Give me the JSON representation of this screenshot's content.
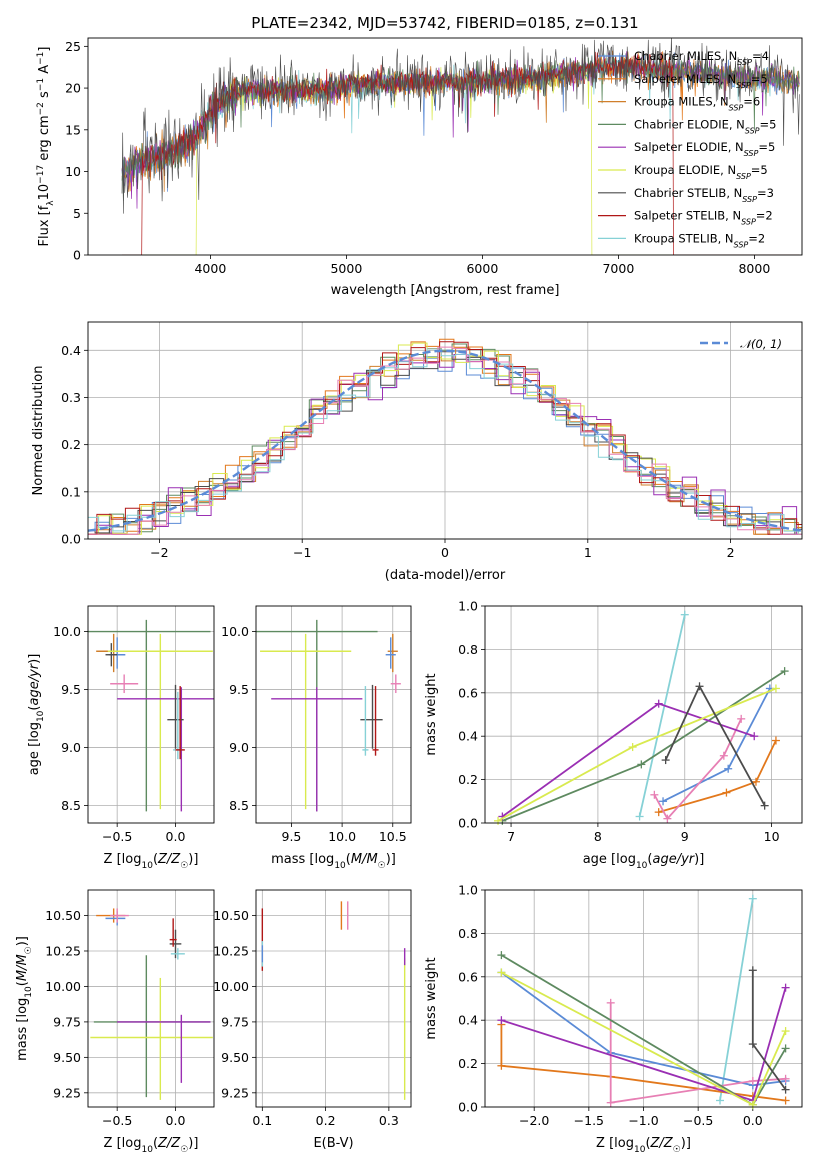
{
  "title": "PLATE=2342, MJD=53742, FIBERID=0185, z=0.131",
  "colors": {
    "Chabrier MILES": "#5b8bd6",
    "Salpeter MILES": "#e2781c",
    "Kroupa MILES": "#d07f2b",
    "Chabrier ELODIE": "#5e8a60",
    "Salpeter ELODIE": "#9a2fb3",
    "Kroupa ELODIE": "#d9ea4f",
    "Chabrier STELIB": "#4c4c4c",
    "Salpeter STELIB": "#b01717",
    "Kroupa STELIB": "#86d1d6",
    "pink": "#e77fb4",
    "normal": "#5b8bd6"
  },
  "chart_data": [
    {
      "type": "line",
      "panel": "spectrum",
      "xlabel": "wavelength [Angstrom, rest frame]",
      "ylabel": "Flux [f_λ 10^-17 erg cm^-2 s^-1 A^-1]",
      "xlim": [
        3100,
        8350
      ],
      "ylim": [
        0,
        26
      ],
      "xticks": [
        4000,
        5000,
        6000,
        7000,
        8000
      ],
      "yticks": [
        0,
        5,
        10,
        15,
        20,
        25
      ],
      "legend_position": "top-right",
      "legend": [
        {
          "label": "Chabrier MILES",
          "nssp": "4"
        },
        {
          "label": "Salpeter MILES",
          "nssp": "5"
        },
        {
          "label": "Kroupa MILES",
          "nssp": "6"
        },
        {
          "label": "Chabrier ELODIE",
          "nssp": "5"
        },
        {
          "label": "Salpeter ELODIE",
          "nssp": "5"
        },
        {
          "label": "Kroupa ELODIE",
          "nssp": "5"
        },
        {
          "label": "Chabrier STELIB",
          "nssp": "3"
        },
        {
          "label": "Salpeter STELIB",
          "nssp": "2"
        },
        {
          "label": "Kroupa STELIB",
          "nssp": "2"
        }
      ],
      "continuum": {
        "x": [
          3350,
          3500,
          3700,
          3900,
          4000,
          4200,
          4500,
          4800,
          5000,
          5300,
          5600,
          6000,
          6300,
          6600,
          7000,
          7300,
          7600,
          8000,
          8350
        ],
        "y": [
          10,
          11,
          12,
          14,
          17,
          19.5,
          19.5,
          19.5,
          20,
          20.5,
          20.5,
          20.5,
          21,
          21.5,
          22.5,
          22,
          21.5,
          21,
          20.5
        ]
      },
      "cutoffs": [
        {
          "series": "Salpeter STELIB",
          "x": 3500
        },
        {
          "series": "Kroupa ELODIE",
          "x": 3900
        },
        {
          "series": "Kroupa ELODIE",
          "x": 6800
        },
        {
          "series": "Salpeter STELIB",
          "x": 7400
        }
      ]
    },
    {
      "type": "histogram",
      "panel": "residuals",
      "xlabel": "(data-model)/error",
      "ylabel": "Normed distribution",
      "xlim": [
        -2.5,
        2.5
      ],
      "ylim": [
        0,
        0.46
      ],
      "xticks": [
        -2,
        -1,
        0,
        1,
        2
      ],
      "yticks": [
        0.0,
        0.1,
        0.2,
        0.3,
        0.4
      ],
      "grid": true,
      "legend_position": "top-right",
      "legend": "N(0,1)",
      "bin_width": 0.1,
      "reference_curve": {
        "type": "normal",
        "mean": 0,
        "sigma": 1
      }
    },
    {
      "type": "scatter-errorbar",
      "panel": "age-vs-Z",
      "xlabel": "Z [log10(Z/Z☉)]",
      "ylabel": "age [log10(age/yr)]",
      "xlim": [
        -0.75,
        0.33
      ],
      "ylim": [
        8.35,
        10.22
      ],
      "xticks": [
        -0.5,
        0.0
      ],
      "yticks": [
        8.5,
        9.0,
        9.5,
        10.0
      ],
      "grid": true,
      "points": [
        {
          "series": "Kroupa MILES",
          "x": -0.53,
          "y": 9.83,
          "ex": [
            0.15,
            0.07
          ],
          "ey": [
            0.18,
            0.15
          ]
        },
        {
          "series": "Chabrier MILES",
          "x": -0.5,
          "y": 9.8,
          "ex": [
            0.07,
            0.07
          ],
          "ey": [
            0.12,
            0.15
          ]
        },
        {
          "series": "Chabrier STELIB",
          "x": -0.55,
          "y": 9.8,
          "ex": [
            0.05,
            0.05
          ],
          "ey": [
            0.1,
            0.1
          ]
        },
        {
          "series": "pink",
          "x": -0.44,
          "y": 9.55,
          "ex": [
            0.12,
            0.12
          ],
          "ey": [
            0.08,
            0.08
          ]
        },
        {
          "series": "Chabrier ELODIE",
          "x": -0.25,
          "y": 10.0,
          "ex": [
            0.55,
            0.55
          ],
          "ey": [
            1.55,
            0.1
          ]
        },
        {
          "series": "Kroupa ELODIE",
          "x": -0.13,
          "y": 9.83,
          "ex": [
            0.45,
            0.45
          ],
          "ey": [
            1.36,
            0.15
          ]
        },
        {
          "series": "Salpeter ELODIE",
          "x": 0.05,
          "y": 9.42,
          "ex": [
            0.55,
            0.3
          ],
          "ey": [
            0.97,
            0.1
          ]
        },
        {
          "series": "Chabrier STELIB",
          "x": 0.0,
          "y": 9.24,
          "ex": [
            0.07,
            0.07
          ],
          "ey": [
            0.25,
            0.3
          ]
        },
        {
          "series": "Kroupa STELIB",
          "x": 0.02,
          "y": 8.98,
          "ex": [
            0.04,
            0.04
          ],
          "ey": [
            0.08,
            0.5
          ]
        },
        {
          "series": "Salpeter STELIB",
          "x": 0.04,
          "y": 8.98,
          "ex": [
            0.04,
            0.04
          ],
          "ey": [
            0.08,
            0.55
          ]
        }
      ]
    },
    {
      "type": "scatter-errorbar",
      "panel": "age-vs-mass",
      "xlabel": "mass [log10(M/M☉)]",
      "ylabel": "",
      "xlim": [
        9.15,
        10.68
      ],
      "ylim": [
        8.35,
        10.22
      ],
      "xticks": [
        9.5,
        10.0,
        10.5
      ],
      "yticks": [
        8.5,
        9.0,
        9.5,
        10.0
      ],
      "grid": true,
      "points": [
        {
          "series": "Chabrier ELODIE",
          "x": 9.75,
          "y": 10.0,
          "ex": [
            0.6,
            0.6
          ],
          "ey": [
            1.55,
            0.1
          ]
        },
        {
          "series": "Kroupa ELODIE",
          "x": 9.64,
          "y": 9.83,
          "ex": [
            0.45,
            0.45
          ],
          "ey": [
            1.36,
            0.15
          ]
        },
        {
          "series": "Salpeter ELODIE",
          "x": 9.75,
          "y": 9.42,
          "ex": [
            0.45,
            0.45
          ],
          "ey": [
            0.97,
            0.1
          ]
        },
        {
          "series": "Chabrier STELIB",
          "x": 10.3,
          "y": 9.24,
          "ex": [
            0.12,
            0.1
          ],
          "ey": [
            0.25,
            0.3
          ]
        },
        {
          "series": "Kroupa STELIB",
          "x": 10.23,
          "y": 8.98,
          "ex": [
            0.03,
            0.03
          ],
          "ey": [
            0.05,
            0.55
          ]
        },
        {
          "series": "Salpeter STELIB",
          "x": 10.33,
          "y": 8.98,
          "ex": [
            0.03,
            0.03
          ],
          "ey": [
            0.05,
            0.55
          ]
        },
        {
          "series": "Kroupa MILES",
          "x": 10.5,
          "y": 9.83,
          "ex": [
            0.05,
            0.05
          ],
          "ey": [
            0.18,
            0.15
          ]
        },
        {
          "series": "Chabrier MILES",
          "x": 10.48,
          "y": 9.8,
          "ex": [
            0.05,
            0.05
          ],
          "ey": [
            0.12,
            0.15
          ]
        },
        {
          "series": "pink",
          "x": 10.53,
          "y": 9.55,
          "ex": [
            0.05,
            0.05
          ],
          "ey": [
            0.08,
            0.08
          ]
        }
      ]
    },
    {
      "type": "line",
      "panel": "mass-weight-vs-age",
      "xlabel": "age [log10(age/yr)]",
      "ylabel": "mass weight",
      "xlim": [
        6.7,
        10.35
      ],
      "ylim": [
        0,
        1
      ],
      "xticks": [
        7,
        8,
        9,
        10
      ],
      "yticks": [
        0.0,
        0.2,
        0.4,
        0.6,
        0.8,
        1.0
      ],
      "grid": true,
      "series": [
        {
          "name": "Kroupa STELIB",
          "x": [
            8.48,
            9.0
          ],
          "y": [
            0.03,
            0.96
          ]
        },
        {
          "name": "Chabrier MILES",
          "x": [
            8.75,
            9.5,
            9.98
          ],
          "y": [
            0.1,
            0.25,
            0.62
          ]
        },
        {
          "name": "Salpeter MILES",
          "x": [
            8.7,
            9.48,
            9.82,
            10.05
          ],
          "y": [
            0.05,
            0.14,
            0.19,
            0.38
          ]
        },
        {
          "name": "pink",
          "x": [
            8.65,
            8.8,
            9.45,
            9.65
          ],
          "y": [
            0.13,
            0.02,
            0.31,
            0.48
          ]
        },
        {
          "name": "Chabrier ELODIE",
          "x": [
            6.9,
            8.5,
            10.15
          ],
          "y": [
            0.01,
            0.27,
            0.7
          ]
        },
        {
          "name": "Salpeter ELODIE",
          "x": [
            6.9,
            8.7,
            9.8
          ],
          "y": [
            0.03,
            0.55,
            0.4
          ]
        },
        {
          "name": "Kroupa ELODIE",
          "x": [
            6.85,
            8.4,
            10.05
          ],
          "y": [
            0.01,
            0.35,
            0.62
          ]
        },
        {
          "name": "Chabrier STELIB",
          "x": [
            8.78,
            9.17,
            9.92
          ],
          "y": [
            0.29,
            0.63,
            0.08
          ]
        }
      ]
    },
    {
      "type": "scatter-errorbar",
      "panel": "mass-vs-Z",
      "xlabel": "Z [log10(Z/Z☉)]",
      "ylabel": "mass [log10(M/M☉)]",
      "xlim": [
        -0.75,
        0.33
      ],
      "ylim": [
        9.15,
        10.68
      ],
      "xticks": [
        -0.5,
        0.0
      ],
      "yticks": [
        9.25,
        9.5,
        9.75,
        10.0,
        10.25,
        10.5
      ],
      "grid": true,
      "points": [
        {
          "series": "Salpeter MILES",
          "x": -0.53,
          "y": 10.5,
          "ex": [
            0.15,
            0.1
          ],
          "ey": [
            0.05,
            0.05
          ]
        },
        {
          "series": "Chabrier MILES",
          "x": -0.5,
          "y": 10.48,
          "ex": [
            0.1,
            0.07
          ],
          "ey": [
            0.05,
            0.05
          ]
        },
        {
          "series": "pink",
          "x": -0.5,
          "y": 10.5,
          "ex": [
            0.06,
            0.1
          ],
          "ey": [
            0.05,
            0.05
          ]
        },
        {
          "series": "Chabrier ELODIE",
          "x": -0.25,
          "y": 9.75,
          "ex": [
            0.45,
            0.55
          ],
          "ey": [
            0.53,
            0.47
          ]
        },
        {
          "series": "Kroupa ELODIE",
          "x": -0.13,
          "y": 9.64,
          "ex": [
            0.6,
            0.45
          ],
          "ey": [
            0.44,
            0.42
          ]
        },
        {
          "series": "Salpeter ELODIE",
          "x": 0.05,
          "y": 9.75,
          "ex": [
            0.55,
            0.25
          ],
          "ey": [
            0.43,
            0.05
          ]
        },
        {
          "series": "Chabrier STELIB",
          "x": 0.0,
          "y": 10.3,
          "ex": [
            0.05,
            0.05
          ],
          "ey": [
            0.1,
            0.1
          ]
        },
        {
          "series": "Salpeter STELIB",
          "x": -0.02,
          "y": 10.33,
          "ex": [
            0.03,
            0.03
          ],
          "ey": [
            0.05,
            0.15
          ]
        },
        {
          "series": "Kroupa STELIB",
          "x": 0.02,
          "y": 10.23,
          "ex": [
            0.06,
            0.06
          ],
          "ey": [
            0.04,
            0.04
          ]
        }
      ]
    },
    {
      "type": "scatter-errorbar",
      "panel": "mass-vs-ebv",
      "xlabel": "E(B-V)",
      "ylabel": "",
      "xlim": [
        0.09,
        0.335
      ],
      "ylim": [
        9.15,
        10.68
      ],
      "xticks": [
        0.1,
        0.2,
        0.3
      ],
      "yticks": [
        9.25,
        9.5,
        9.75,
        10.0,
        10.25,
        10.5
      ],
      "grid": true,
      "points": [
        {
          "series": "Salpeter STELIB",
          "x": 0.1,
          "y": 10.33,
          "ex": [
            0,
            0
          ],
          "ey": [
            0.22,
            0.22
          ]
        },
        {
          "series": "Kroupa STELIB",
          "x": 0.1,
          "y": 10.23,
          "ex": [
            0,
            0
          ],
          "ey": [
            0.09,
            0.09
          ]
        },
        {
          "series": "Chabrier MILES",
          "x": 0.1,
          "y": 10.23,
          "ex": [
            0,
            0
          ],
          "ey": [
            0.06,
            0.06
          ]
        },
        {
          "series": "Salpeter MILES",
          "x": 0.225,
          "y": 10.5,
          "ex": [
            0,
            0
          ],
          "ey": [
            0.1,
            0.1
          ]
        },
        {
          "series": "pink",
          "x": 0.235,
          "y": 10.5,
          "ex": [
            0,
            0
          ],
          "ey": [
            0.1,
            0.1
          ]
        },
        {
          "series": "Kroupa ELODIE",
          "x": 0.325,
          "y": 9.75,
          "ex": [
            0,
            0
          ],
          "ey": [
            0.55,
            0.45
          ]
        },
        {
          "series": "Salpeter ELODIE",
          "x": 0.325,
          "y": 10.2,
          "ex": [
            0,
            0
          ],
          "ey": [
            0.05,
            0.07
          ]
        }
      ]
    },
    {
      "type": "line",
      "panel": "mass-weight-vs-Z",
      "xlabel": "Z [log10(Z/Z☉)]",
      "ylabel": "mass weight",
      "xlim": [
        -2.45,
        0.45
      ],
      "ylim": [
        0,
        1
      ],
      "xticks": [
        -2.0,
        -1.5,
        -1.0,
        -0.5,
        0.0
      ],
      "yticks": [
        0.0,
        0.2,
        0.4,
        0.6,
        0.8,
        1.0
      ],
      "grid": true,
      "series": [
        {
          "name": "Kroupa STELIB",
          "x": [
            -0.3,
            0.0
          ],
          "y": [
            0.03,
            0.96
          ]
        },
        {
          "name": "Chabrier MILES",
          "x": [
            -2.3,
            -1.3,
            0.0,
            0.3
          ],
          "y": [
            0.62,
            0.25,
            0.1,
            0.12
          ]
        },
        {
          "name": "Salpeter MILES",
          "x": [
            -2.3,
            -2.3,
            -1.3,
            0.0,
            0.3
          ],
          "y": [
            0.38,
            0.19,
            0.14,
            0.05,
            0.03
          ]
        },
        {
          "name": "pink",
          "x": [
            -1.3,
            -1.3,
            0.0,
            0.3
          ],
          "y": [
            0.48,
            0.02,
            0.12,
            0.13
          ]
        },
        {
          "name": "Chabrier ELODIE",
          "x": [
            -2.3,
            0.0,
            0.3
          ],
          "y": [
            0.7,
            0.01,
            0.27
          ]
        },
        {
          "name": "Salpeter ELODIE",
          "x": [
            -2.3,
            0.0,
            0.3
          ],
          "y": [
            0.4,
            0.03,
            0.55
          ]
        },
        {
          "name": "Kroupa ELODIE",
          "x": [
            -2.3,
            0.0,
            0.3
          ],
          "y": [
            0.62,
            0.01,
            0.35
          ]
        },
        {
          "name": "Chabrier STELIB",
          "x": [
            0.0,
            0.0,
            0.3
          ],
          "y": [
            0.63,
            0.29,
            0.08
          ]
        }
      ]
    }
  ]
}
